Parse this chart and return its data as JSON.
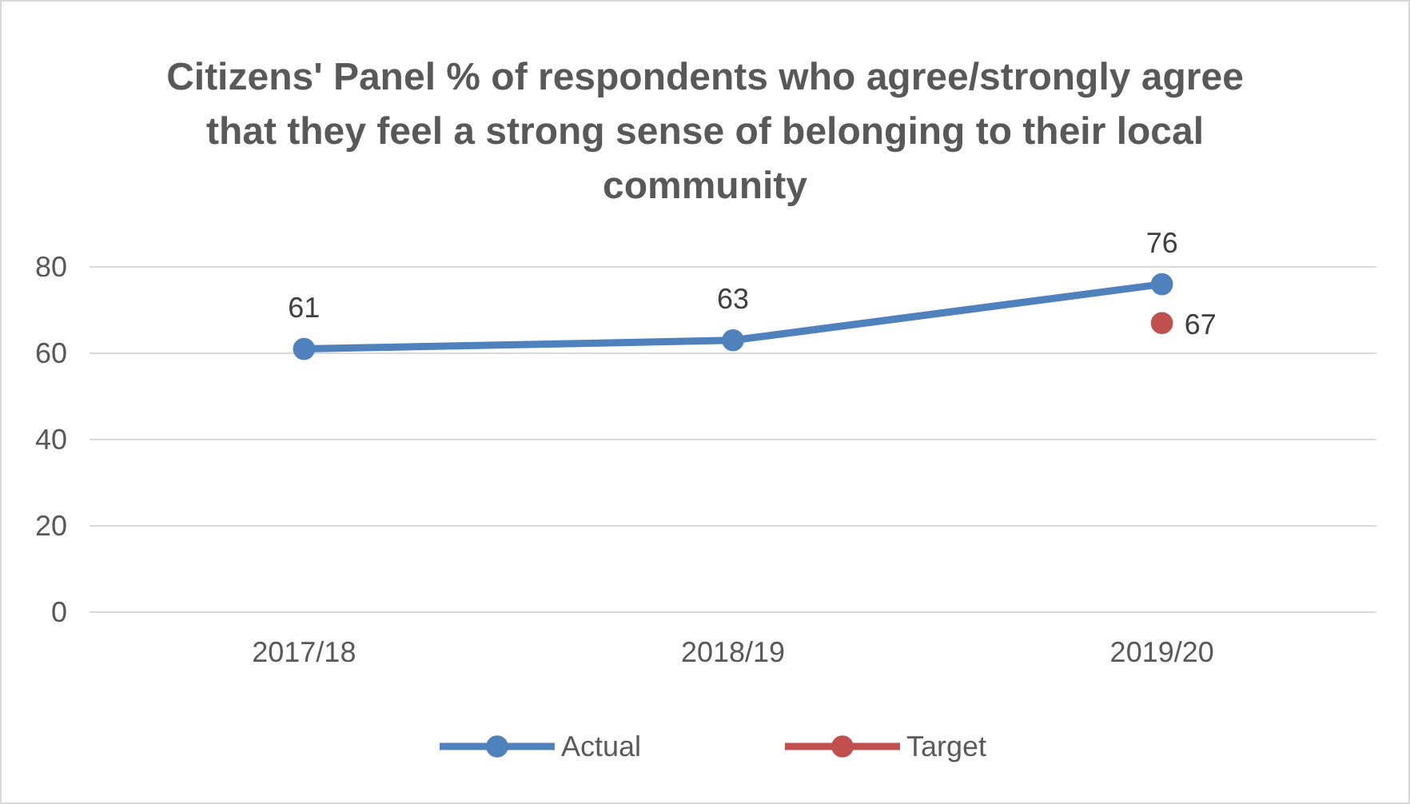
{
  "chart_data": {
    "type": "line",
    "title": "Citizens' Panel % of respondents who agree/strongly agree that they feel a strong sense of belonging to their local community",
    "categories": [
      "2017/18",
      "2018/19",
      "2019/20"
    ],
    "series": [
      {
        "name": "Actual",
        "color": "#4f81bd",
        "values": [
          61,
          63,
          76
        ]
      },
      {
        "name": "Target",
        "color": "#c0504d",
        "values": [
          null,
          null,
          67
        ]
      }
    ],
    "ylim": [
      0,
      80
    ],
    "yticks": [
      0,
      20,
      40,
      60,
      80
    ],
    "grid": "y",
    "legend": "bottom",
    "data_labels": true,
    "marker": "circle",
    "line_style": "solid"
  }
}
